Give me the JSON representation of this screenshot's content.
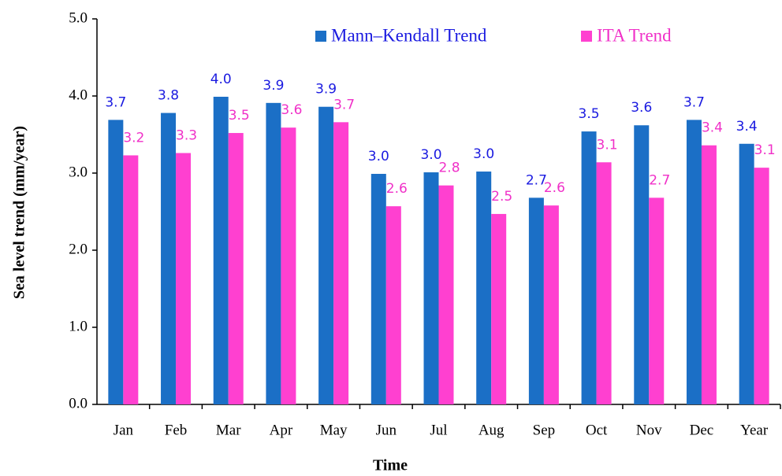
{
  "chart_data": {
    "type": "bar",
    "x_label": "Time",
    "y_label": "Sea level trend (mm/year)",
    "categories": [
      "Jan",
      "Feb",
      "Mar",
      "Apr",
      "May",
      "Jun",
      "Jul",
      "Aug",
      "Sep",
      "Oct",
      "Nov",
      "Dec",
      "Year"
    ],
    "series": [
      {
        "name": "Mann–Kendall  Trend",
        "color": "#1b6fc6",
        "label_color": "#1a1ae0",
        "values": [
          3.69,
          3.78,
          3.99,
          3.91,
          3.86,
          2.99,
          3.01,
          3.02,
          2.68,
          3.54,
          3.62,
          3.69,
          3.38
        ],
        "value_labels": [
          "3.7",
          "3.8",
          "4.0",
          "3.9",
          "3.9",
          "3.0",
          "3.0",
          "3.0",
          "2.7",
          "3.5",
          "3.6",
          "3.7",
          "3.4"
        ]
      },
      {
        "name": "ITA Trend",
        "color": "#ff40d0",
        "label_color": "#f030c8",
        "values": [
          3.23,
          3.26,
          3.52,
          3.59,
          3.66,
          2.57,
          2.84,
          2.47,
          2.58,
          3.14,
          2.68,
          3.36,
          3.07
        ],
        "value_labels": [
          "3.2",
          "3.3",
          "3.5",
          "3.6",
          "3.7",
          "2.6",
          "2.8",
          "2.5",
          "2.6",
          "3.1",
          "2.7",
          "3.4",
          "3.1"
        ]
      }
    ],
    "ylim": [
      0,
      5
    ],
    "yticks": [
      {
        "value": 0,
        "label": "0.0"
      },
      {
        "value": 1,
        "label": "1.0"
      },
      {
        "value": 2,
        "label": "2.0"
      },
      {
        "value": 3,
        "label": "3.0"
      },
      {
        "value": 4,
        "label": "4.0"
      },
      {
        "value": 5,
        "label": "5.0"
      }
    ],
    "grid": false,
    "legend": "top"
  }
}
